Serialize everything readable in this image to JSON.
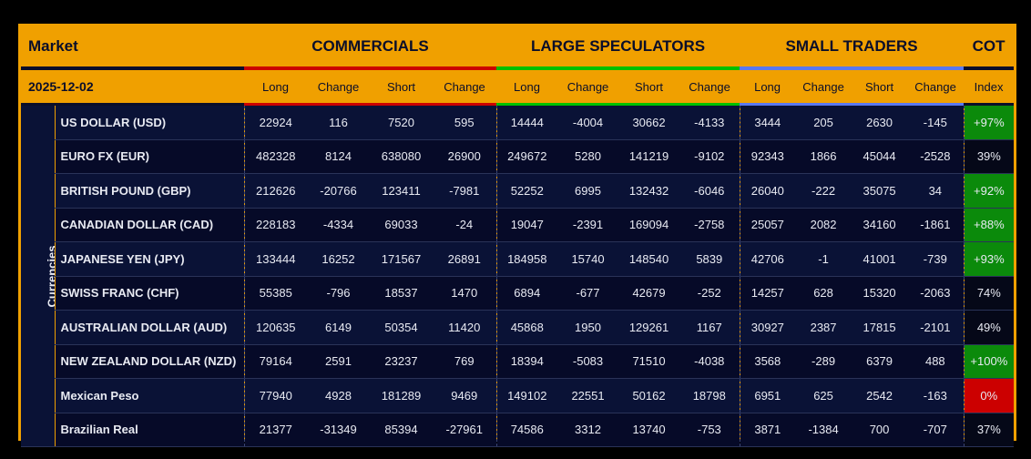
{
  "header": {
    "market": "Market",
    "groups": [
      "COMMERCIALS",
      "LARGE SPECULATORS",
      "SMALL TRADERS",
      "COT"
    ],
    "date": "2025-12-02",
    "subcols": [
      "Long",
      "Change",
      "Short",
      "Change"
    ],
    "cot_sub": "Index"
  },
  "colors": {
    "commercials": "#cc0000",
    "large_speculators": "#00c000",
    "small_traders": "#5a78f0",
    "cot": "#0a0e2a",
    "accent": "#f0a000",
    "positive": "#0b8a0b",
    "negative": "#cc0000"
  },
  "category": "Currencies",
  "rows": [
    {
      "name": "US DOLLAR (USD)",
      "c": [
        "22924",
        "116",
        "7520",
        "595"
      ],
      "l": [
        "14444",
        "-4004",
        "30662",
        "-4133"
      ],
      "s": [
        "3444",
        "205",
        "2630",
        "-145"
      ],
      "cot": "+97%",
      "cot_state": "pos"
    },
    {
      "name": "EURO FX (EUR)",
      "c": [
        "482328",
        "8124",
        "638080",
        "26900"
      ],
      "l": [
        "249672",
        "5280",
        "141219",
        "-9102"
      ],
      "s": [
        "92343",
        "1866",
        "45044",
        "-2528"
      ],
      "cot": "39%",
      "cot_state": ""
    },
    {
      "name": "BRITISH POUND (GBP)",
      "c": [
        "212626",
        "-20766",
        "123411",
        "-7981"
      ],
      "l": [
        "52252",
        "6995",
        "132432",
        "-6046"
      ],
      "s": [
        "26040",
        "-222",
        "35075",
        "34"
      ],
      "cot": "+92%",
      "cot_state": "pos"
    },
    {
      "name": "CANADIAN DOLLAR (CAD)",
      "c": [
        "228183",
        "-4334",
        "69033",
        "-24"
      ],
      "l": [
        "19047",
        "-2391",
        "169094",
        "-2758"
      ],
      "s": [
        "25057",
        "2082",
        "34160",
        "-1861"
      ],
      "cot": "+88%",
      "cot_state": "pos"
    },
    {
      "name": "JAPANESE YEN (JPY)",
      "c": [
        "133444",
        "16252",
        "171567",
        "26891"
      ],
      "l": [
        "184958",
        "15740",
        "148540",
        "5839"
      ],
      "s": [
        "42706",
        "-1",
        "41001",
        "-739"
      ],
      "cot": "+93%",
      "cot_state": "pos"
    },
    {
      "name": "SWISS FRANC (CHF)",
      "c": [
        "55385",
        "-796",
        "18537",
        "1470"
      ],
      "l": [
        "6894",
        "-677",
        "42679",
        "-252"
      ],
      "s": [
        "14257",
        "628",
        "15320",
        "-2063"
      ],
      "cot": "74%",
      "cot_state": ""
    },
    {
      "name": "AUSTRALIAN DOLLAR (AUD)",
      "c": [
        "120635",
        "6149",
        "50354",
        "11420"
      ],
      "l": [
        "45868",
        "1950",
        "129261",
        "1167"
      ],
      "s": [
        "30927",
        "2387",
        "17815",
        "-2101"
      ],
      "cot": "49%",
      "cot_state": ""
    },
    {
      "name": "NEW ZEALAND DOLLAR (NZD)",
      "c": [
        "79164",
        "2591",
        "23237",
        "769"
      ],
      "l": [
        "18394",
        "-5083",
        "71510",
        "-4038"
      ],
      "s": [
        "3568",
        "-289",
        "6379",
        "488"
      ],
      "cot": "+100%",
      "cot_state": "pos"
    },
    {
      "name": "Mexican Peso",
      "c": [
        "77940",
        "4928",
        "181289",
        "9469"
      ],
      "l": [
        "149102",
        "22551",
        "50162",
        "18798"
      ],
      "s": [
        "6951",
        "625",
        "2542",
        "-163"
      ],
      "cot": "0%",
      "cot_state": "neg"
    },
    {
      "name": "Brazilian Real",
      "c": [
        "21377",
        "-31349",
        "85394",
        "-27961"
      ],
      "l": [
        "74586",
        "3312",
        "13740",
        "-753"
      ],
      "s": [
        "3871",
        "-1384",
        "700",
        "-707"
      ],
      "cot": "37%",
      "cot_state": ""
    }
  ]
}
